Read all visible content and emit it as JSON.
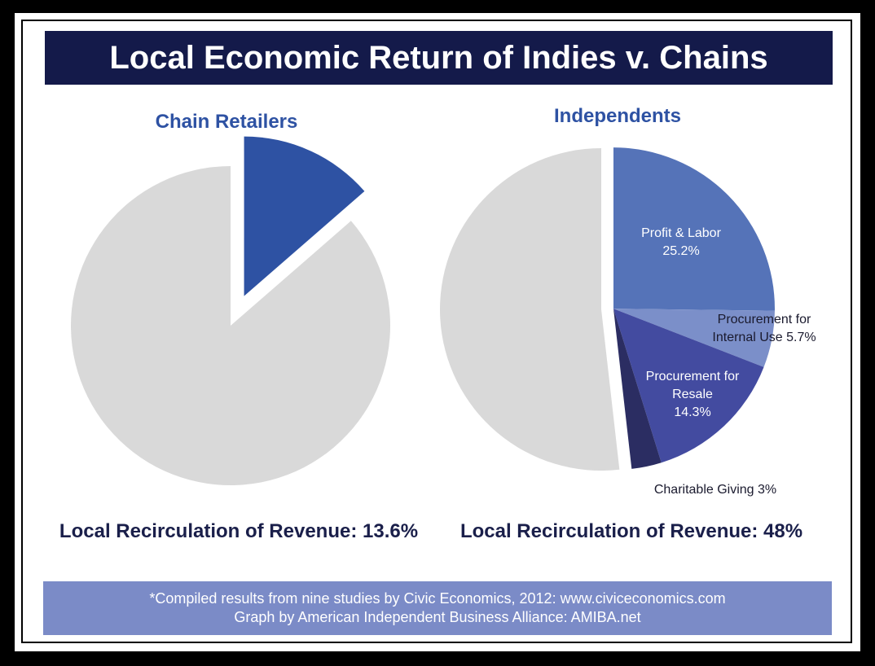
{
  "title": "Local Economic Return of Indies v. Chains",
  "footer": [
    "*Compiled results from nine studies by Civic Economics, 2012: www.civiceconomics.com",
    "Graph by American Independent Business Alliance: AMIBA.net"
  ],
  "chart_data": [
    {
      "type": "pie",
      "title": "Chain Retailers",
      "annotation": "Local Recirculation of Revenue: 13.6%",
      "categories": [
        null,
        null
      ],
      "values": [
        13.6,
        86.4
      ],
      "value_labels": [
        null,
        null
      ],
      "colors": [
        "#2e52a3",
        "#d9d9d9"
      ],
      "explode": [
        true,
        false
      ]
    },
    {
      "type": "pie",
      "title": "Independents",
      "annotation": "Local Recirculation of Revenue: 48%",
      "categories": [
        "Profit & Labor",
        "Procurement for Internal Use",
        "Procurement for Resale",
        "Charitable Giving",
        null
      ],
      "values": [
        25.2,
        5.7,
        14.3,
        3,
        51.8
      ],
      "value_labels": [
        "25.2%",
        "5.7%",
        "14.3%",
        "3%",
        null
      ],
      "colors": [
        "#5573b8",
        "#7b8fc9",
        "#434ba0",
        "#2b2d62",
        "#d9d9d9"
      ],
      "explode": [
        true,
        true,
        true,
        true,
        false
      ]
    }
  ]
}
